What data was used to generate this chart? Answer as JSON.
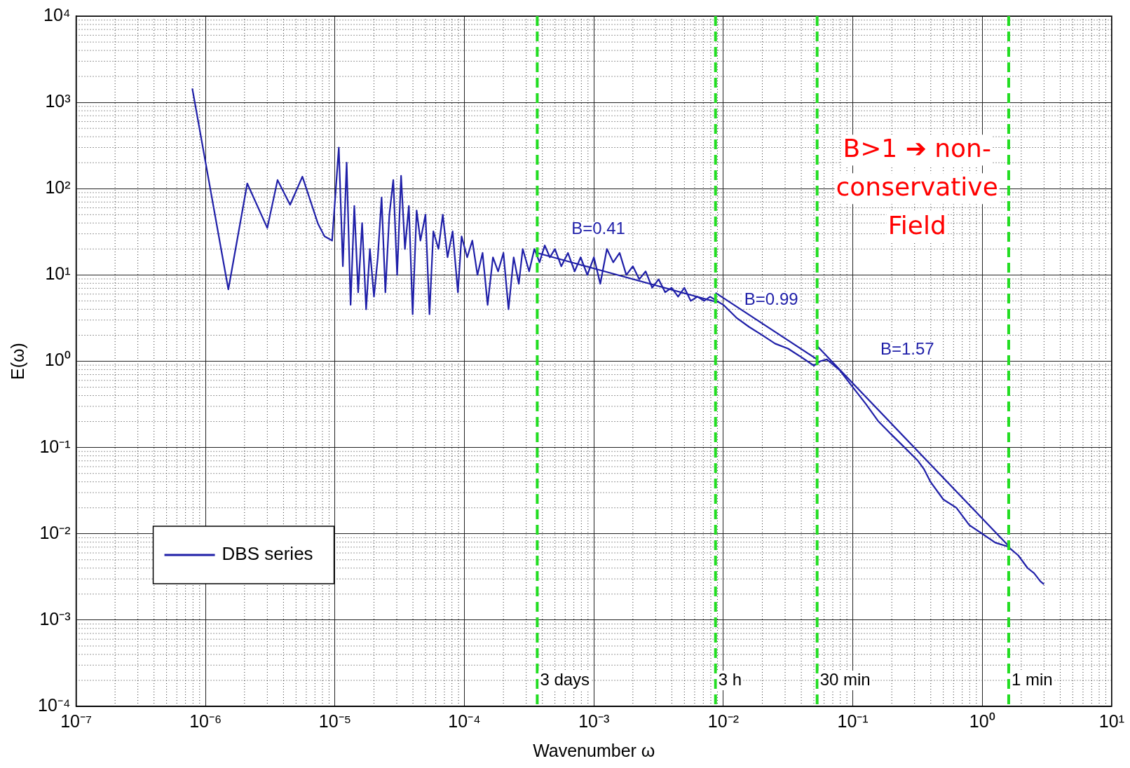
{
  "chart_data": {
    "type": "line",
    "xlabel": "Wavenumber ω",
    "ylabel": "E(ω)",
    "log": "xy",
    "grid": true,
    "legend": "bottom left",
    "marker": "none",
    "line_style": "solid",
    "xlim": [
      1e-07,
      10
    ],
    "ylim": [
      0.0001,
      10000.0
    ],
    "xticks": [
      {
        "value": 1e-07,
        "label": "10⁻⁷"
      },
      {
        "value": 1e-06,
        "label": "10⁻⁶"
      },
      {
        "value": 1e-05,
        "label": "10⁻⁵"
      },
      {
        "value": 0.0001,
        "label": "10⁻⁴"
      },
      {
        "value": 0.001,
        "label": "10⁻³"
      },
      {
        "value": 0.01,
        "label": "10⁻²"
      },
      {
        "value": 0.1,
        "label": "10⁻¹"
      },
      {
        "value": 1,
        "label": "10⁰"
      },
      {
        "value": 10,
        "label": "10¹"
      }
    ],
    "yticks": [
      {
        "value": 0.0001,
        "label": "10⁻⁴"
      },
      {
        "value": 0.001,
        "label": "10⁻³"
      },
      {
        "value": 0.01,
        "label": "10⁻²"
      },
      {
        "value": 0.1,
        "label": "10⁻¹"
      },
      {
        "value": 1,
        "label": "10⁰"
      },
      {
        "value": 10,
        "label": "10¹"
      },
      {
        "value": 100,
        "label": "10²"
      },
      {
        "value": 1000,
        "label": "10³"
      },
      {
        "value": 10000,
        "label": "10⁴"
      }
    ],
    "x": [
      7.9e-07,
      1.5e-06,
      2.1e-06,
      3e-06,
      3.6e-06,
      4.5e-06,
      5.6e-06,
      7.4e-06,
      8.3e-06,
      9.5e-06,
      1.07e-05,
      1.15e-05,
      1.23e-05,
      1.32e-05,
      1.41e-05,
      1.51e-05,
      1.62e-05,
      1.74e-05,
      1.86e-05,
      2e-05,
      2.14e-05,
      2.29e-05,
      2.45e-05,
      2.63e-05,
      2.82e-05,
      3.02e-05,
      3.24e-05,
      3.47e-05,
      3.72e-05,
      3.98e-05,
      4.27e-05,
      4.57e-05,
      5e-05,
      5.37e-05,
      5.75e-05,
      6.3e-05,
      6.8e-05,
      7.4e-05,
      8.1e-05,
      8.9e-05,
      9.5e-05,
      0.000105,
      0.000115,
      0.000126,
      0.000138,
      0.000151,
      0.000166,
      0.000182,
      0.0002,
      0.000219,
      0.00024,
      0.000263,
      0.000282,
      0.000316,
      0.000347,
      0.00038,
      0.000417,
      0.000457,
      0.0005,
      0.00056,
      0.00063,
      0.00071,
      0.00079,
      0.00089,
      0.001,
      0.00112,
      0.00126,
      0.00141,
      0.00158,
      0.00178,
      0.002,
      0.00224,
      0.00251,
      0.00282,
      0.00316,
      0.00355,
      0.00398,
      0.00447,
      0.005,
      0.0056,
      0.0063,
      0.0071,
      0.0079,
      0.0089,
      0.01,
      0.0126,
      0.0158,
      0.02,
      0.0251,
      0.0316,
      0.0398,
      0.05,
      0.056,
      0.063,
      0.079,
      0.1,
      0.126,
      0.158,
      0.2,
      0.251,
      0.316,
      0.355,
      0.398,
      0.5,
      0.631,
      0.794,
      1,
      1.26,
      1.58,
      1.9,
      2.24,
      2.51,
      2.82,
      3.0
    ],
    "series": [
      {
        "name": "DBS series",
        "color": "#1f1fa8",
        "values": [
          1450,
          6.8,
          115,
          35,
          126,
          65,
          138,
          39,
          28,
          25,
          300,
          12.6,
          200,
          4.5,
          63,
          6.3,
          40,
          4.0,
          20,
          5.6,
          15.8,
          79,
          6.3,
          50,
          126,
          10,
          141,
          20,
          63,
          3.5,
          56,
          25,
          50,
          3.5,
          32,
          20,
          50,
          16,
          32,
          6.3,
          28,
          16,
          25,
          10,
          18,
          4.5,
          16,
          11,
          18,
          4.0,
          16,
          7.9,
          20,
          11,
          20,
          14,
          22,
          16,
          20,
          12.6,
          18,
          11,
          16,
          10,
          16,
          7.9,
          20,
          14,
          18,
          10,
          12.6,
          8.9,
          11,
          7.1,
          8.9,
          6.3,
          7.1,
          5.6,
          7.1,
          5.0,
          5.6,
          5.0,
          5.6,
          5.0,
          4.5,
          3.2,
          2.5,
          2.0,
          1.6,
          1.4,
          1.12,
          0.89,
          1.0,
          1.05,
          0.79,
          0.5,
          0.32,
          0.2,
          0.14,
          0.1,
          0.071,
          0.056,
          0.04,
          0.025,
          0.02,
          0.0126,
          0.01,
          0.0079,
          0.0071,
          0.0056,
          0.004,
          0.0035,
          0.0028,
          0.0026
        ]
      },
      {
        "type": "line",
        "color": "#1f1fa8",
        "x": [
          0.000365,
          0.0087
        ],
        "values": [
          18,
          4.9
        ]
      },
      {
        "type": "line",
        "color": "#1f1fa8",
        "x": [
          0.0087,
          0.053
        ],
        "values": [
          6.2,
          1.05
        ]
      },
      {
        "type": "line",
        "color": "#1f1fa8",
        "x": [
          0.053,
          1.6
        ],
        "values": [
          1.5,
          0.0072
        ]
      }
    ],
    "ref_lines": [
      {
        "axis": "x",
        "value": 0.000365,
        "label": "3 days",
        "color": "#22dd22",
        "line_style": "dashed"
      },
      {
        "axis": "x",
        "value": 0.0087,
        "label": "3 h",
        "color": "#22dd22",
        "line_style": "dashed"
      },
      {
        "axis": "x",
        "value": 0.053,
        "label": "30 min",
        "color": "#22dd22",
        "line_style": "dashed"
      },
      {
        "axis": "x",
        "value": 1.6,
        "label": "1 min",
        "color": "#22dd22",
        "line_style": "dashed"
      }
    ],
    "annotations": [
      "B=0.41",
      "B=0.99",
      "B=1.57",
      "B>1 ➔ non-conservative Field"
    ]
  }
}
